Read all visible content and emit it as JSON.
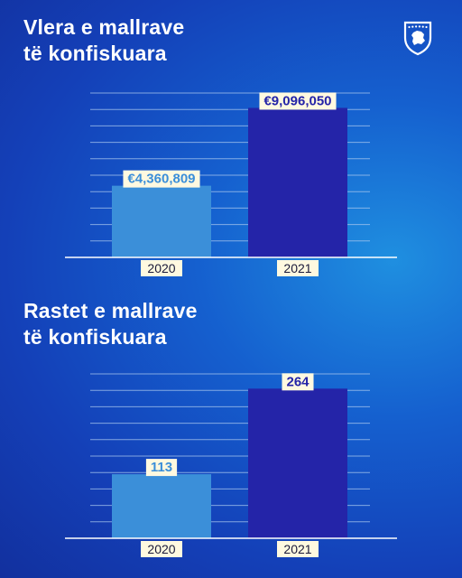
{
  "chart_data": [
    {
      "type": "bar",
      "title_lines": [
        "Vlera e mallrave",
        "të konfiskuara"
      ],
      "categories": [
        "2020",
        "2021"
      ],
      "values": [
        4360809,
        9096050
      ],
      "value_labels": [
        "€4,360,809",
        "€9,096,050"
      ],
      "ylim": [
        0,
        10000000
      ],
      "grid": true,
      "bar_colors": [
        "#3b8fd9",
        "#2424a8"
      ],
      "label_colors": [
        "#3b8fd9",
        "#2424a8"
      ]
    },
    {
      "type": "bar",
      "title_lines": [
        "Rastet e mallrave",
        "të konfiskuara"
      ],
      "categories": [
        "2020",
        "2021"
      ],
      "values": [
        113,
        264
      ],
      "value_labels": [
        "113",
        "264"
      ],
      "ylim": [
        0,
        290
      ],
      "grid": true,
      "bar_colors": [
        "#3b8fd9",
        "#2424a8"
      ],
      "label_colors": [
        "#3b8fd9",
        "#2424a8"
      ]
    }
  ],
  "colors": {
    "text": "#ffffff",
    "label_bg": "#fff9e0",
    "gridline": "#a9c7ee"
  },
  "emblem": {
    "icon": "kosovo-coat-of-arms-icon"
  }
}
